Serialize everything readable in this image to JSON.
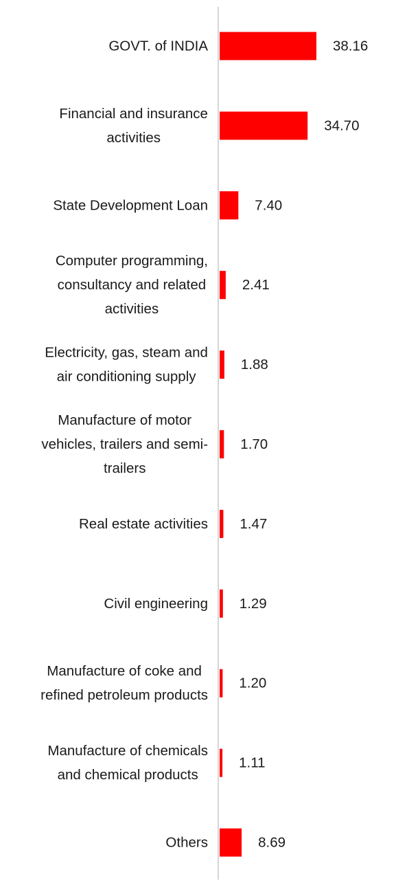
{
  "chart_data": {
    "type": "bar",
    "orientation": "horizontal",
    "categories": [
      "GOVT. of INDIA",
      "Financial and insurance activities",
      "State Development Loan",
      "Computer programming, consultancy and related activities",
      "Electricity, gas, steam and air conditioning supply",
      "Manufacture of motor vehicles, trailers and semi-trailers",
      "Real estate activities",
      "Civil engineering",
      "Manufacture of coke and refined petroleum products",
      "Manufacture of chemicals and chemical products",
      "Others"
    ],
    "category_lines": [
      [
        "GOVT. of INDIA"
      ],
      [
        "Financial and insurance",
        "activities"
      ],
      [
        "State Development Loan"
      ],
      [
        "Computer programming,",
        "consultancy and related",
        "activities"
      ],
      [
        "Electricity, gas, steam and",
        "air conditioning supply"
      ],
      [
        "Manufacture of motor",
        "vehicles, trailers and semi-",
        "trailers"
      ],
      [
        "Real estate activities"
      ],
      [
        "Civil engineering"
      ],
      [
        "Manufacture of coke and",
        "refined petroleum products"
      ],
      [
        "Manufacture of chemicals",
        "and chemical products"
      ],
      [
        "Others"
      ]
    ],
    "values": [
      38.16,
      34.7,
      7.4,
      2.41,
      1.88,
      1.7,
      1.47,
      1.29,
      1.2,
      1.11,
      8.69
    ],
    "value_labels": [
      "38.16",
      "34.70",
      "7.40",
      "2.41",
      "1.88",
      "1.70",
      "1.47",
      "1.29",
      "1.20",
      "1.11",
      "8.69"
    ],
    "bar_color": "#ff0000",
    "axis_color": "#d4d4d4",
    "text_color": "#1a1a1a",
    "xlim": [
      0,
      38.16
    ],
    "grid": false,
    "legend": "none"
  }
}
